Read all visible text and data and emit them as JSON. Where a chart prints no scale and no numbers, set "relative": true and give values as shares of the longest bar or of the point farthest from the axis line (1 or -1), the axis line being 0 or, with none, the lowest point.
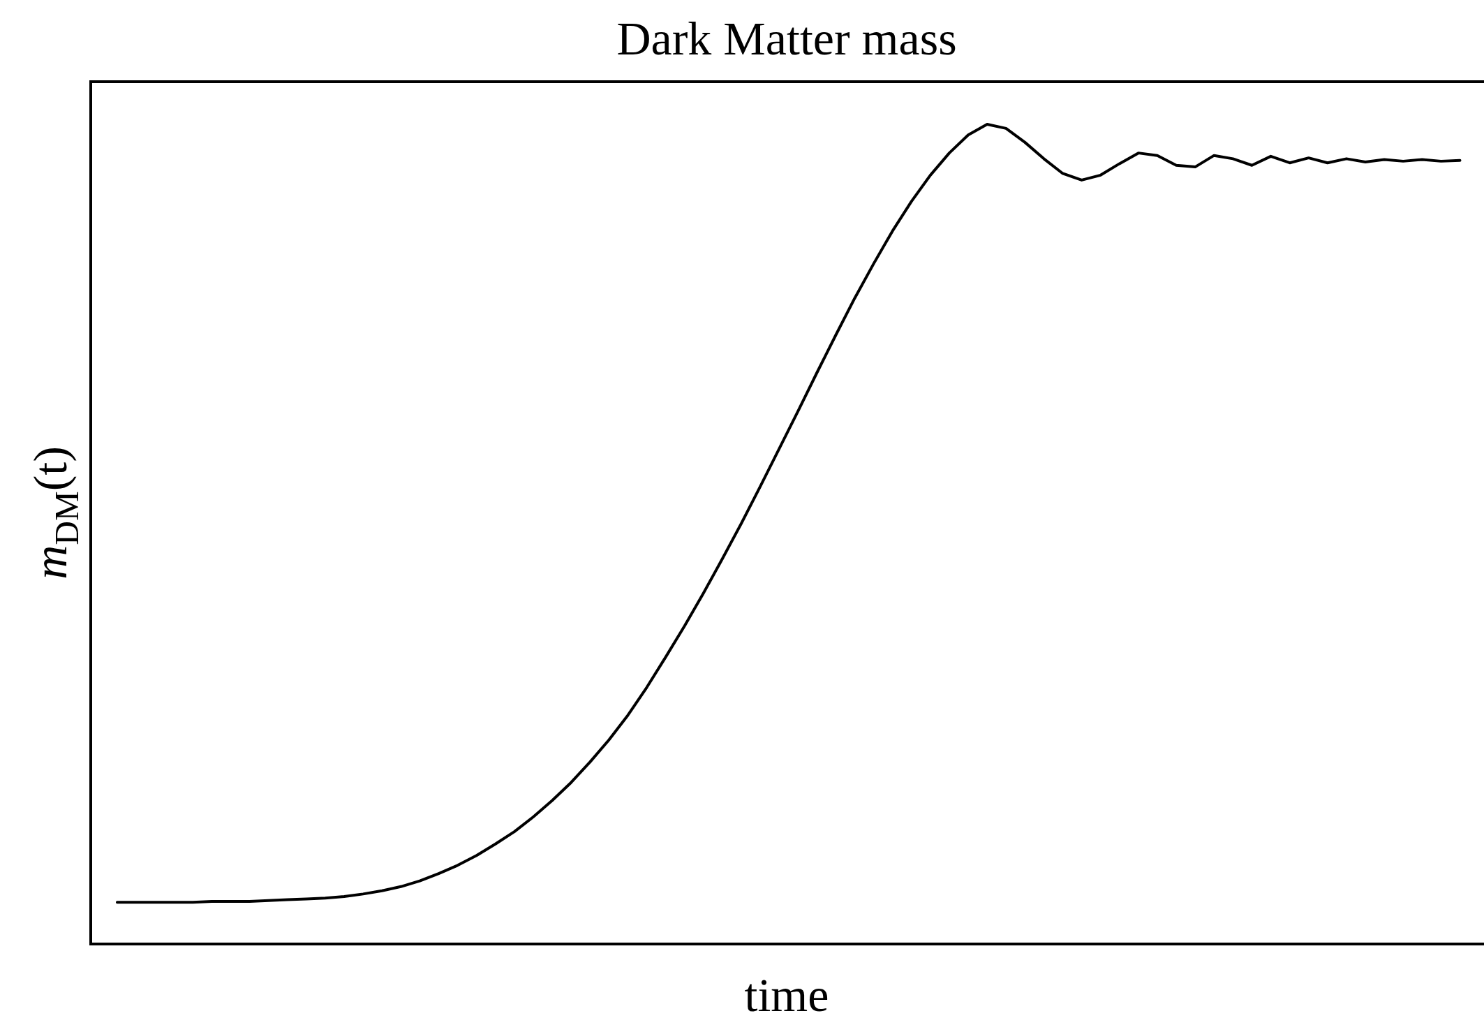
{
  "chart_data": {
    "type": "line",
    "title": "Dark Matter mass",
    "xlabel": "time",
    "ylabel": "m$_{DM}$(t)",
    "relative": true,
    "color": "#000000",
    "legend": false,
    "grid": false,
    "marker": "none",
    "line_style": "solid",
    "categories": [
      null,
      null,
      null,
      null,
      null,
      null,
      null,
      null,
      null,
      null,
      null,
      null,
      null,
      null,
      null,
      null,
      null,
      null,
      null,
      null,
      null,
      null,
      null,
      null,
      null,
      null,
      null,
      null,
      null,
      null,
      null,
      null,
      null,
      null,
      null,
      null,
      null,
      null,
      null,
      null,
      null,
      null,
      null,
      null,
      null,
      null,
      null,
      null,
      null,
      null,
      null,
      null,
      null,
      null,
      null,
      null,
      null,
      null,
      null,
      null,
      null,
      null,
      null,
      null,
      null,
      null,
      null,
      null,
      null,
      null,
      null,
      null
    ],
    "values": [
      0.051,
      0.051,
      0.051,
      0.051,
      0.051,
      0.052,
      0.052,
      0.052,
      0.053,
      0.054,
      0.055,
      0.056,
      0.058,
      0.061,
      0.065,
      0.07,
      0.077,
      0.086,
      0.096,
      0.108,
      0.122,
      0.137,
      0.155,
      0.175,
      0.197,
      0.222,
      0.249,
      0.279,
      0.313,
      0.35,
      0.388,
      0.428,
      0.47,
      0.513,
      0.558,
      0.604,
      0.65,
      0.697,
      0.743,
      0.788,
      0.83,
      0.87,
      0.906,
      0.938,
      0.965,
      0.987,
      1.0,
      0.995,
      0.978,
      0.958,
      0.94,
      0.932,
      0.938,
      0.952,
      0.965,
      0.962,
      0.95,
      0.948,
      0.962,
      0.958,
      0.95,
      0.961,
      0.953,
      0.959,
      0.953,
      0.958,
      0.954,
      0.957,
      0.955,
      0.957,
      0.955,
      0.956
    ]
  }
}
